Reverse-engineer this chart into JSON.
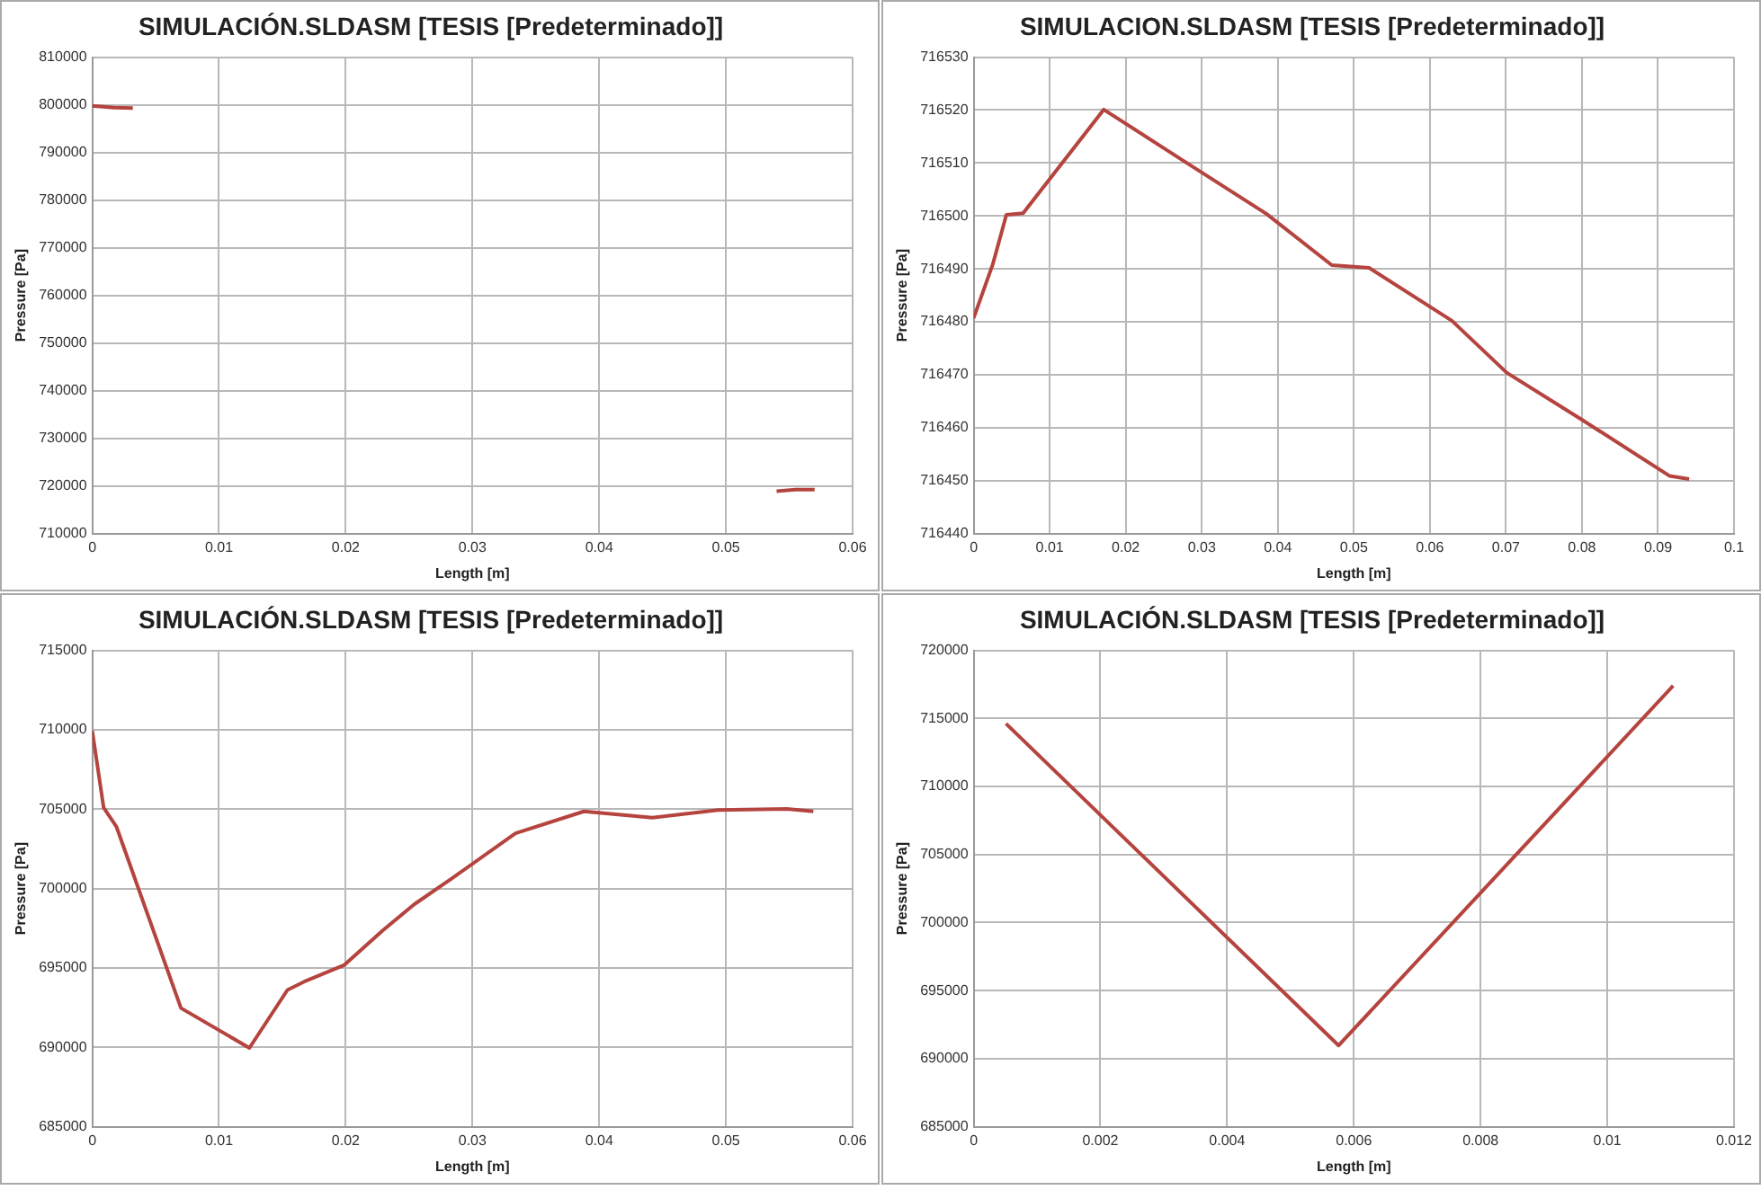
{
  "chart_data": [
    {
      "type": "line",
      "title": "SIMULACIÓN.SLDASM [TESIS [Predeterminado]]",
      "xlabel": "Length [m]",
      "ylabel": "Pressure [Pa]",
      "grid": true,
      "legend": false,
      "marker": "none",
      "xlim": [
        0,
        0.06
      ],
      "xticks": [
        0,
        0.01,
        0.02,
        0.03,
        0.04,
        0.05,
        0.06
      ],
      "ylim": [
        710000,
        810000
      ],
      "yticks": [
        710000,
        720000,
        730000,
        740000,
        750000,
        760000,
        770000,
        780000,
        790000,
        800000,
        810000
      ],
      "series": [
        {
          "color": "#b5443f",
          "x": [
            0,
            0.0017,
            0.0032
          ],
          "values": [
            799800,
            799400,
            799300
          ]
        },
        {
          "color": "#b5443f",
          "x": [
            0.054,
            0.0555,
            0.057
          ],
          "values": [
            718900,
            719200,
            719200
          ]
        }
      ]
    },
    {
      "type": "line",
      "title": "SIMULACION.SLDASM [TESIS [Predeterminado]]",
      "xlabel": "Length [m]",
      "ylabel": "Pressure [Pa]",
      "grid": true,
      "legend": false,
      "marker": "none",
      "xlim": [
        0,
        0.1
      ],
      "xticks": [
        0,
        0.01,
        0.02,
        0.03,
        0.04,
        0.05,
        0.06,
        0.07,
        0.08,
        0.09,
        0.1
      ],
      "ylim": [
        716440,
        716530
      ],
      "yticks": [
        716440,
        716450,
        716460,
        716470,
        716480,
        716490,
        716500,
        716510,
        716520,
        716530
      ],
      "series": [
        {
          "color": "#b5443f",
          "x": [
            0,
            0.0025,
            0.0043,
            0.0065,
            0.0171,
            0.0274,
            0.0385,
            0.0471,
            0.052,
            0.0629,
            0.0701,
            0.08,
            0.0915,
            0.0941
          ],
          "values": [
            716480.7,
            716490.8,
            716500.2,
            716500.5,
            716520.1,
            716510.6,
            716500.4,
            716490.7,
            716490.2,
            716480.2,
            716470.4,
            716461.5,
            716450.9,
            716450.3
          ]
        }
      ]
    },
    {
      "type": "line",
      "title": "SIMULACIÓN.SLDASM [TESIS [Predeterminado]]",
      "xlabel": "Length [m]",
      "ylabel": "Pressure [Pa]",
      "grid": true,
      "legend": false,
      "marker": "none",
      "xlim": [
        0,
        0.06
      ],
      "xticks": [
        0,
        0.01,
        0.02,
        0.03,
        0.04,
        0.05,
        0.06
      ],
      "ylim": [
        685000,
        715000
      ],
      "yticks": [
        685000,
        690000,
        695000,
        700000,
        705000,
        710000,
        715000
      ],
      "series": [
        {
          "color": "#b5443f",
          "x": [
            0,
            0.0009,
            0.0019,
            0.007,
            0.0124,
            0.0154,
            0.0169,
            0.0199,
            0.0229,
            0.0254,
            0.0284,
            0.0334,
            0.0388,
            0.0442,
            0.0494,
            0.0548,
            0.0569
          ],
          "values": [
            709930,
            705090,
            703910,
            692470,
            689960,
            693610,
            694200,
            695190,
            697350,
            699000,
            700650,
            703480,
            704860,
            704460,
            704940,
            705010,
            704860
          ]
        }
      ]
    },
    {
      "type": "line",
      "title": "SIMULACIÓN.SLDASM [TESIS [Predeterminado]]",
      "xlabel": "Length [m]",
      "ylabel": "Pressure [Pa]",
      "grid": true,
      "legend": false,
      "marker": "none",
      "xlim": [
        0,
        0.012
      ],
      "xticks": [
        0,
        0.002,
        0.004,
        0.006,
        0.008,
        0.01,
        0.012
      ],
      "ylim": [
        685000,
        720000
      ],
      "yticks": [
        685000,
        690000,
        695000,
        700000,
        705000,
        710000,
        715000,
        720000
      ],
      "series": [
        {
          "color": "#b5443f",
          "x": [
            0.00051,
            0.00576,
            0.01104
          ],
          "values": [
            714620,
            690970,
            717400
          ]
        }
      ]
    }
  ]
}
